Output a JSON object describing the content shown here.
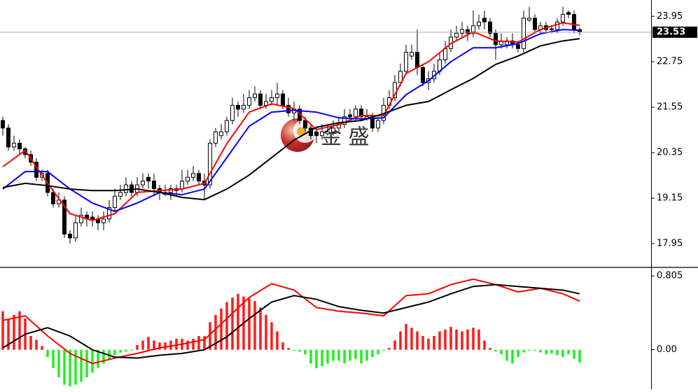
{
  "chart_data": [
    {
      "type": "candlestick",
      "xlim": [
        -0.5,
        115.75
      ],
      "ylim": [
        17.34,
        24.38
      ],
      "yticks": [
        17.95,
        19.15,
        20.35,
        21.55,
        22.75,
        23.95
      ],
      "up_color": "#ffffff",
      "down_color": "#000000",
      "last_price": 23.53,
      "watermark": "金 盛",
      "ohlc": [
        [
          21.2,
          21.3,
          20.8,
          21.0
        ],
        [
          21.0,
          21.1,
          20.4,
          20.5
        ],
        [
          20.5,
          20.8,
          20.4,
          20.6
        ],
        [
          20.6,
          20.7,
          20.3,
          20.45
        ],
        [
          20.45,
          20.5,
          20.2,
          20.3
        ],
        [
          20.3,
          20.4,
          20.0,
          20.1
        ],
        [
          20.1,
          20.2,
          19.6,
          19.7
        ],
        [
          19.7,
          19.9,
          19.6,
          19.8
        ],
        [
          19.8,
          19.9,
          19.2,
          19.3
        ],
        [
          19.3,
          19.4,
          18.9,
          19.0
        ],
        [
          19.0,
          19.3,
          18.9,
          19.1
        ],
        [
          19.1,
          19.2,
          18.1,
          18.2
        ],
        [
          18.2,
          18.3,
          17.95,
          18.1
        ],
        [
          18.1,
          18.7,
          18.0,
          18.5
        ],
        [
          18.5,
          18.9,
          18.4,
          18.7
        ],
        [
          18.7,
          18.8,
          18.4,
          18.6
        ],
        [
          18.65,
          18.8,
          18.4,
          18.6
        ],
        [
          18.6,
          18.7,
          18.3,
          18.5
        ],
        [
          18.5,
          18.8,
          18.3,
          18.6
        ],
        [
          18.6,
          19.1,
          18.5,
          18.9
        ],
        [
          18.9,
          19.4,
          18.8,
          19.2
        ],
        [
          19.2,
          19.5,
          19.1,
          19.3
        ],
        [
          19.3,
          19.7,
          19.2,
          19.5
        ],
        [
          19.5,
          19.6,
          19.2,
          19.3
        ],
        [
          19.3,
          19.7,
          19.2,
          19.5
        ],
        [
          19.5,
          19.8,
          19.4,
          19.6
        ],
        [
          19.7,
          19.8,
          19.4,
          19.6
        ],
        [
          19.6,
          19.8,
          19.2,
          19.4
        ],
        [
          19.4,
          19.5,
          19.1,
          19.3
        ],
        [
          19.25,
          19.5,
          19.2,
          19.3
        ],
        [
          19.3,
          19.5,
          19.1,
          19.4
        ],
        [
          19.35,
          19.5,
          19.2,
          19.4
        ],
        [
          19.4,
          19.9,
          19.3,
          19.6
        ],
        [
          19.6,
          19.9,
          19.5,
          19.7
        ],
        [
          19.7,
          20.0,
          19.6,
          19.8
        ],
        [
          19.8,
          19.9,
          19.5,
          19.6
        ],
        [
          19.6,
          19.8,
          19.1,
          19.5
        ],
        [
          19.5,
          20.7,
          19.4,
          20.6
        ],
        [
          20.6,
          21.0,
          20.5,
          20.9
        ],
        [
          20.8,
          21.1,
          20.7,
          20.9
        ],
        [
          20.9,
          21.3,
          20.8,
          21.2
        ],
        [
          21.2,
          21.8,
          21.1,
          21.6
        ],
        [
          21.6,
          21.7,
          21.3,
          21.5
        ],
        [
          21.5,
          21.9,
          21.4,
          21.6
        ],
        [
          21.6,
          22.0,
          21.5,
          21.8
        ],
        [
          21.8,
          22.1,
          21.7,
          21.9
        ],
        [
          21.9,
          22.0,
          21.5,
          21.6
        ],
        [
          21.6,
          21.9,
          21.5,
          21.7
        ],
        [
          21.7,
          22.0,
          21.6,
          21.8
        ],
        [
          21.8,
          22.2,
          21.6,
          21.9
        ],
        [
          21.9,
          22.0,
          21.5,
          21.6
        ],
        [
          21.6,
          21.8,
          21.3,
          21.4
        ],
        [
          21.4,
          21.7,
          21.2,
          21.5
        ],
        [
          21.5,
          21.6,
          21.1,
          21.2
        ],
        [
          21.2,
          21.3,
          20.9,
          21.0
        ],
        [
          21.0,
          21.1,
          20.7,
          20.8
        ],
        [
          20.9,
          21.0,
          20.6,
          20.8
        ],
        [
          20.8,
          21.1,
          20.7,
          20.9
        ],
        [
          20.85,
          21.1,
          20.8,
          20.9
        ],
        [
          20.9,
          21.2,
          20.8,
          21.0
        ],
        [
          21.0,
          21.3,
          20.9,
          21.1
        ],
        [
          21.1,
          21.5,
          21.0,
          21.3
        ],
        [
          21.35,
          21.5,
          21.2,
          21.3
        ],
        [
          21.3,
          21.6,
          21.2,
          21.5
        ],
        [
          21.5,
          21.6,
          21.2,
          21.3
        ],
        [
          21.25,
          21.5,
          21.2,
          21.3
        ],
        [
          21.3,
          21.4,
          20.9,
          21.0
        ],
        [
          21.0,
          21.3,
          20.9,
          21.2
        ],
        [
          21.2,
          21.8,
          21.1,
          21.6
        ],
        [
          21.6,
          22.0,
          21.5,
          21.8
        ],
        [
          21.8,
          22.4,
          21.7,
          22.2
        ],
        [
          22.2,
          22.7,
          22.1,
          22.5
        ],
        [
          22.5,
          23.2,
          22.4,
          23.0
        ],
        [
          22.9,
          23.2,
          22.8,
          23.0
        ],
        [
          23.0,
          23.6,
          22.4,
          22.6
        ],
        [
          22.6,
          22.7,
          22.1,
          22.2
        ],
        [
          22.2,
          22.5,
          22.0,
          22.3
        ],
        [
          22.3,
          22.7,
          22.2,
          22.5
        ],
        [
          22.5,
          23.0,
          22.4,
          22.8
        ],
        [
          22.8,
          23.3,
          22.7,
          23.1
        ],
        [
          23.1,
          23.6,
          23.0,
          23.4
        ],
        [
          23.4,
          23.7,
          23.3,
          23.5
        ],
        [
          23.5,
          23.8,
          23.4,
          23.6
        ],
        [
          23.6,
          23.7,
          23.3,
          23.5
        ],
        [
          23.5,
          24.1,
          23.4,
          23.7
        ],
        [
          23.7,
          24.0,
          23.6,
          23.8
        ],
        [
          23.9,
          24.1,
          23.6,
          23.8
        ],
        [
          23.8,
          23.9,
          23.4,
          23.5
        ],
        [
          23.5,
          23.6,
          22.8,
          23.2
        ],
        [
          23.2,
          23.5,
          23.1,
          23.3
        ],
        [
          23.2,
          23.4,
          23.1,
          23.3
        ],
        [
          23.3,
          23.5,
          23.1,
          23.2
        ],
        [
          23.2,
          23.3,
          23.0,
          23.1
        ],
        [
          23.1,
          24.1,
          23.0,
          23.9
        ],
        [
          23.85,
          24.2,
          23.8,
          23.9
        ],
        [
          23.9,
          24.0,
          23.5,
          23.6
        ],
        [
          23.6,
          23.8,
          23.5,
          23.7
        ],
        [
          23.7,
          23.8,
          23.5,
          23.6
        ],
        [
          23.62,
          23.7,
          23.5,
          23.6
        ],
        [
          23.6,
          23.9,
          23.5,
          23.8
        ],
        [
          23.8,
          24.2,
          23.7,
          24.0
        ],
        [
          24.05,
          24.1,
          23.9,
          24.0
        ],
        [
          24.0,
          24.1,
          23.5,
          23.6
        ],
        [
          23.6,
          23.65,
          23.45,
          23.53
        ]
      ],
      "series": [
        {
          "color": "#ff0000",
          "x": [
            0,
            4,
            8,
            12,
            16,
            20,
            24,
            28,
            32,
            36,
            40,
            44,
            48,
            52,
            56,
            60,
            64,
            68,
            72,
            76,
            80,
            84,
            88,
            92,
            96,
            100,
            103
          ],
          "values": [
            19.98,
            20.41,
            19.54,
            18.74,
            18.56,
            18.74,
            19.3,
            19.35,
            19.39,
            19.54,
            20.59,
            21.42,
            21.64,
            21.51,
            20.96,
            21.09,
            21.33,
            21.33,
            22.44,
            22.75,
            23.23,
            23.54,
            23.3,
            23.27,
            23.6,
            23.78,
            23.71
          ]
        },
        {
          "color": "#0000ff",
          "x": [
            0,
            4,
            8,
            12,
            16,
            20,
            24,
            28,
            32,
            36,
            40,
            44,
            48,
            52,
            56,
            60,
            64,
            68,
            72,
            76,
            80,
            84,
            88,
            92,
            96,
            100,
            103
          ],
          "values": [
            19.39,
            19.85,
            19.85,
            19.39,
            19.02,
            18.8,
            19.02,
            19.3,
            19.24,
            19.39,
            20.22,
            21.05,
            21.42,
            21.47,
            21.42,
            21.27,
            21.24,
            21.27,
            21.88,
            22.25,
            22.75,
            23.12,
            23.12,
            23.23,
            23.49,
            23.6,
            23.58
          ]
        },
        {
          "color": "#000000",
          "x": [
            0,
            4,
            8,
            12,
            16,
            20,
            24,
            28,
            32,
            36,
            40,
            44,
            48,
            52,
            56,
            60,
            64,
            68,
            72,
            76,
            80,
            84,
            88,
            92,
            96,
            100,
            103
          ],
          "values": [
            19.43,
            19.54,
            19.48,
            19.39,
            19.35,
            19.35,
            19.39,
            19.3,
            19.17,
            19.11,
            19.39,
            19.76,
            20.22,
            20.68,
            21.02,
            21.14,
            21.2,
            21.38,
            21.6,
            21.7,
            22.01,
            22.31,
            22.68,
            22.9,
            23.17,
            23.3,
            23.36
          ]
        }
      ]
    },
    {
      "type": "macd",
      "xlim": [
        -0.5,
        115.75
      ],
      "ylim": [
        -0.43,
        0.89
      ],
      "yticks": [
        {
          "value": 0,
          "label": "0.00"
        },
        0.805
      ],
      "histogram": {
        "up_color": "#ff1a1a",
        "down_color": "#22ee22",
        "values": [
          0.42,
          0.34,
          0.38,
          0.42,
          0.34,
          0.15,
          0.11,
          0.04,
          -0.08,
          -0.2,
          -0.3,
          -0.38,
          -0.4,
          -0.38,
          -0.35,
          -0.3,
          -0.25,
          -0.2,
          -0.15,
          -0.1,
          -0.06,
          -0.03,
          -0.02,
          -0.01,
          0.05,
          0.1,
          0.14,
          0.1,
          0.08,
          0.08,
          0.1,
          0.12,
          0.12,
          0.1,
          0.12,
          0.15,
          0.15,
          0.3,
          0.38,
          0.45,
          0.52,
          0.57,
          0.61,
          0.58,
          0.56,
          0.53,
          0.46,
          0.38,
          0.3,
          0.2,
          0.08,
          0.02,
          -0.01,
          -0.02,
          -0.05,
          -0.15,
          -0.2,
          -0.18,
          -0.15,
          -0.12,
          -0.12,
          -0.15,
          -0.12,
          -0.1,
          -0.15,
          -0.12,
          -0.08,
          -0.05,
          -0.01,
          0.02,
          0.1,
          0.2,
          0.28,
          0.24,
          0.2,
          0.15,
          0.12,
          0.15,
          0.2,
          0.22,
          0.25,
          0.22,
          0.2,
          0.22,
          0.24,
          0.22,
          0.1,
          0.02,
          -0.02,
          -0.05,
          -0.12,
          -0.15,
          -0.08,
          -0.03,
          -0.01,
          -0.01,
          -0.03,
          -0.05,
          -0.04,
          -0.06,
          -0.08,
          -0.05,
          -0.1,
          -0.14
        ]
      },
      "series": [
        {
          "color": "#ff0000",
          "x": [
            0,
            4,
            8,
            12,
            16,
            20,
            24,
            28,
            32,
            36,
            40,
            44,
            48,
            52,
            56,
            60,
            64,
            68,
            72,
            76,
            80,
            84,
            88,
            92,
            96,
            100,
            103
          ],
          "values": [
            0.32,
            0.37,
            0.15,
            -0.04,
            -0.15,
            -0.09,
            -0.04,
            0.02,
            0.06,
            0.11,
            0.34,
            0.57,
            0.72,
            0.65,
            0.46,
            0.42,
            0.4,
            0.37,
            0.59,
            0.61,
            0.71,
            0.77,
            0.71,
            0.63,
            0.67,
            0.61,
            0.53
          ]
        },
        {
          "color": "#000000",
          "x": [
            0,
            4,
            8,
            12,
            16,
            20,
            24,
            28,
            32,
            36,
            40,
            44,
            48,
            52,
            56,
            60,
            64,
            68,
            72,
            76,
            80,
            84,
            88,
            92,
            96,
            100,
            103
          ],
          "values": [
            0.02,
            0.17,
            0.24,
            0.15,
            0,
            -0.08,
            -0.09,
            -0.06,
            -0.04,
            0,
            0.14,
            0.34,
            0.52,
            0.59,
            0.55,
            0.47,
            0.43,
            0.4,
            0.46,
            0.52,
            0.61,
            0.69,
            0.71,
            0.69,
            0.67,
            0.65,
            0.61
          ]
        }
      ]
    }
  ]
}
